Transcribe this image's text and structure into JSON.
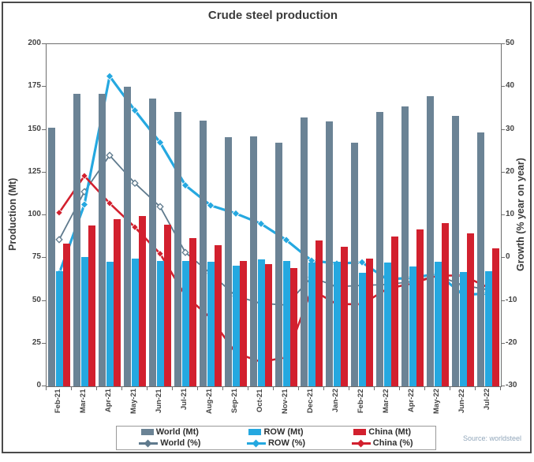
{
  "colors": {
    "world": "#6b8395",
    "row": "#25a8e0",
    "china": "#d2202e",
    "world_line": "#5f7a8d",
    "axis_text": "#454545",
    "title_text": "#3b3b3b",
    "source_text": "#92a7bb"
  },
  "chart_data": {
    "type": "combo_bar_line",
    "title": "Crude steel production",
    "categories": [
      "Feb-21",
      "Mar-21",
      "Apr-21",
      "May-21",
      "Jun-21",
      "Jul-21",
      "Aug-21",
      "Sep-21",
      "Oct-21",
      "Nov-21",
      "Dec-21",
      "Jan-22",
      "Feb-22",
      "Mar-22",
      "Apr-22",
      "May-22",
      "Jun-22",
      "Jul-22"
    ],
    "bar_series": [
      {
        "name": "World (Mt)",
        "axis": "left",
        "color_key": "world",
        "values": [
          151,
          171,
          171,
          175,
          168,
          160.5,
          155.5,
          145.5,
          146,
          142.5,
          157,
          155,
          142.5,
          160.5,
          163.5,
          169.5,
          158,
          148.5
        ]
      },
      {
        "name": "ROW (Mt)",
        "axis": "left",
        "color_key": "row",
        "values": [
          67.5,
          75.5,
          73,
          74.5,
          73.5,
          73.5,
          73,
          70.5,
          74,
          73.5,
          72.5,
          73,
          66.5,
          72.5,
          70,
          73,
          67,
          67.5
        ]
      },
      {
        "name": "China (Mt)",
        "axis": "left",
        "color_key": "china",
        "values": [
          83.5,
          94,
          97.5,
          99.5,
          94.5,
          86.5,
          82.5,
          73.5,
          71.5,
          69,
          85.5,
          81.5,
          74.5,
          87.5,
          91.5,
          95.5,
          89.5,
          80.5
        ]
      }
    ],
    "line_series": [
      {
        "name": "World (%)",
        "axis": "right",
        "color_key": "world_line",
        "marker": "open-diamond",
        "values": [
          4.3,
          15.5,
          24,
          17.5,
          12,
          1.3,
          -3.6,
          -8.9,
          -10.6,
          -11,
          -4.5,
          -6.7,
          -6.4,
          -6.2,
          -5.5,
          -4.1,
          -6.4,
          -7.4
        ]
      },
      {
        "name": "ROW (%)",
        "axis": "right",
        "color_key": "row",
        "marker": "filled-diamond",
        "values": [
          -3.6,
          12.5,
          42.5,
          34.5,
          27,
          17,
          12.3,
          10.4,
          8,
          4.2,
          -0.6,
          -1.3,
          -1,
          -5,
          -4.6,
          -3.7,
          -8.6,
          -8.3
        ]
      },
      {
        "name": "China (%)",
        "axis": "right",
        "color_key": "china",
        "marker": "filled-diamond",
        "values": [
          10.6,
          19.2,
          12.8,
          7.2,
          1,
          -8.8,
          -14,
          -22.2,
          -24.3,
          -23.2,
          -7.4,
          -10.8,
          -10.8,
          -7.2,
          -5.9,
          -4.1,
          -4.1,
          -6.9
        ]
      }
    ],
    "left_axis": {
      "title": "Production (Mt)",
      "min": 0,
      "max": 200,
      "step": 25,
      "tick_labels": [
        "200",
        "175",
        "150",
        "125",
        "100",
        "75",
        "50",
        "25",
        "0"
      ]
    },
    "right_axis": {
      "title": "Growth (% year on year)",
      "min": -30,
      "max": 50,
      "step": 10,
      "tick_labels": [
        "50",
        "40",
        "30",
        "20",
        "10",
        "0",
        "-10",
        "-20",
        "-30"
      ]
    },
    "legend": [
      "World (Mt)",
      "ROW (Mt)",
      "China (Mt)",
      "World (%)",
      "ROW (%)",
      "China (%)"
    ],
    "legend_position": "bottom-center",
    "grid": false,
    "source": "Source: worldsteel"
  }
}
